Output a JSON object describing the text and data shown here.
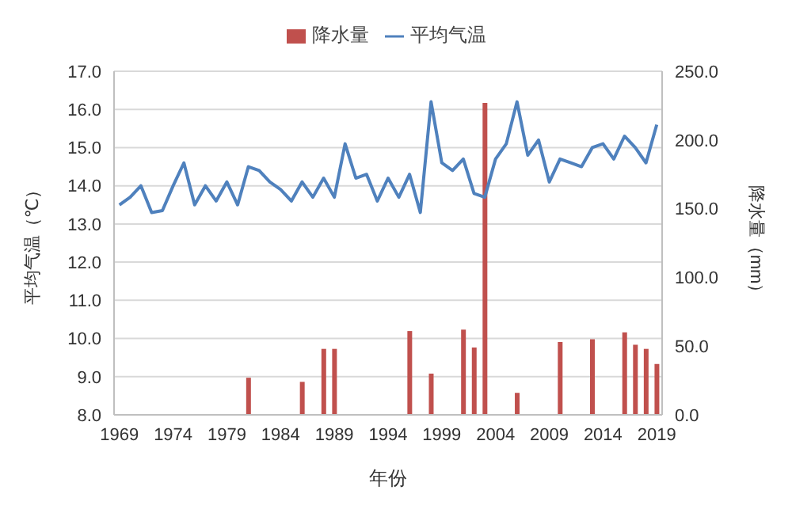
{
  "chart_data": {
    "type": "bar",
    "xlabel": "年份",
    "ylabel": "平均气温（℃）",
    "y2label": "降水量（mm）",
    "categories": [
      "1969",
      null,
      null,
      null,
      null,
      "1974",
      null,
      null,
      null,
      null,
      "1979",
      null,
      null,
      null,
      null,
      "1984",
      null,
      null,
      null,
      null,
      "1989",
      null,
      null,
      null,
      null,
      "1994",
      null,
      null,
      null,
      null,
      "1999",
      null,
      null,
      null,
      null,
      "2004",
      null,
      null,
      null,
      null,
      "2009",
      null,
      null,
      null,
      null,
      "2014",
      null,
      null,
      null,
      null,
      "2019"
    ],
    "series": [
      {
        "name": "降水量",
        "axis": "y2",
        "color": "#c0504d",
        "values": [
          null,
          null,
          null,
          null,
          null,
          null,
          null,
          null,
          null,
          null,
          null,
          null,
          27,
          null,
          null,
          null,
          null,
          24,
          null,
          48,
          48,
          null,
          null,
          null,
          null,
          null,
          null,
          61,
          null,
          30,
          null,
          null,
          62,
          49,
          227,
          null,
          null,
          16,
          null,
          null,
          null,
          53,
          null,
          null,
          55,
          null,
          null,
          60,
          51,
          48,
          37
        ]
      },
      {
        "name": "平均气温",
        "type": "line",
        "axis": "y",
        "color": "#4f81bd",
        "values": [
          13.5,
          13.7,
          14.0,
          13.3,
          13.35,
          14.0,
          14.6,
          13.5,
          14.0,
          13.6,
          14.1,
          13.5,
          14.5,
          14.4,
          14.1,
          13.9,
          13.6,
          14.1,
          13.7,
          14.2,
          13.7,
          15.1,
          14.2,
          14.3,
          13.6,
          14.2,
          13.7,
          14.3,
          13.3,
          16.2,
          14.6,
          14.4,
          14.7,
          13.8,
          13.7,
          14.7,
          15.1,
          16.2,
          14.8,
          15.2,
          14.1,
          14.7,
          14.6,
          14.5,
          15.0,
          15.1,
          14.7,
          15.3,
          15.0,
          14.6,
          15.6
        ]
      }
    ],
    "ylim": [
      8,
      17
    ],
    "yticks": [
      {
        "value": 8,
        "label": "8.0"
      },
      {
        "value": 9,
        "label": "9.0"
      },
      {
        "value": 10,
        "label": "10.0"
      },
      {
        "value": 11,
        "label": "11.0"
      },
      {
        "value": 12,
        "label": "12.0"
      },
      {
        "value": 13,
        "label": "13.0"
      },
      {
        "value": 14,
        "label": "14.0"
      },
      {
        "value": 15,
        "label": "15.0"
      },
      {
        "value": 16,
        "label": "16.0"
      },
      {
        "value": 17,
        "label": "17.0"
      }
    ],
    "y2lim": [
      0,
      250
    ],
    "y2ticks": [
      {
        "value": 0,
        "label": "0.0"
      },
      {
        "value": 50,
        "label": "50.0"
      },
      {
        "value": 100,
        "label": "100.0"
      },
      {
        "value": 150,
        "label": "150.0"
      },
      {
        "value": 200,
        "label": "200.0"
      },
      {
        "value": 250,
        "label": "250.0"
      }
    ],
    "grid": "y",
    "legend": "top",
    "marker": "none",
    "line_style": "solid"
  }
}
